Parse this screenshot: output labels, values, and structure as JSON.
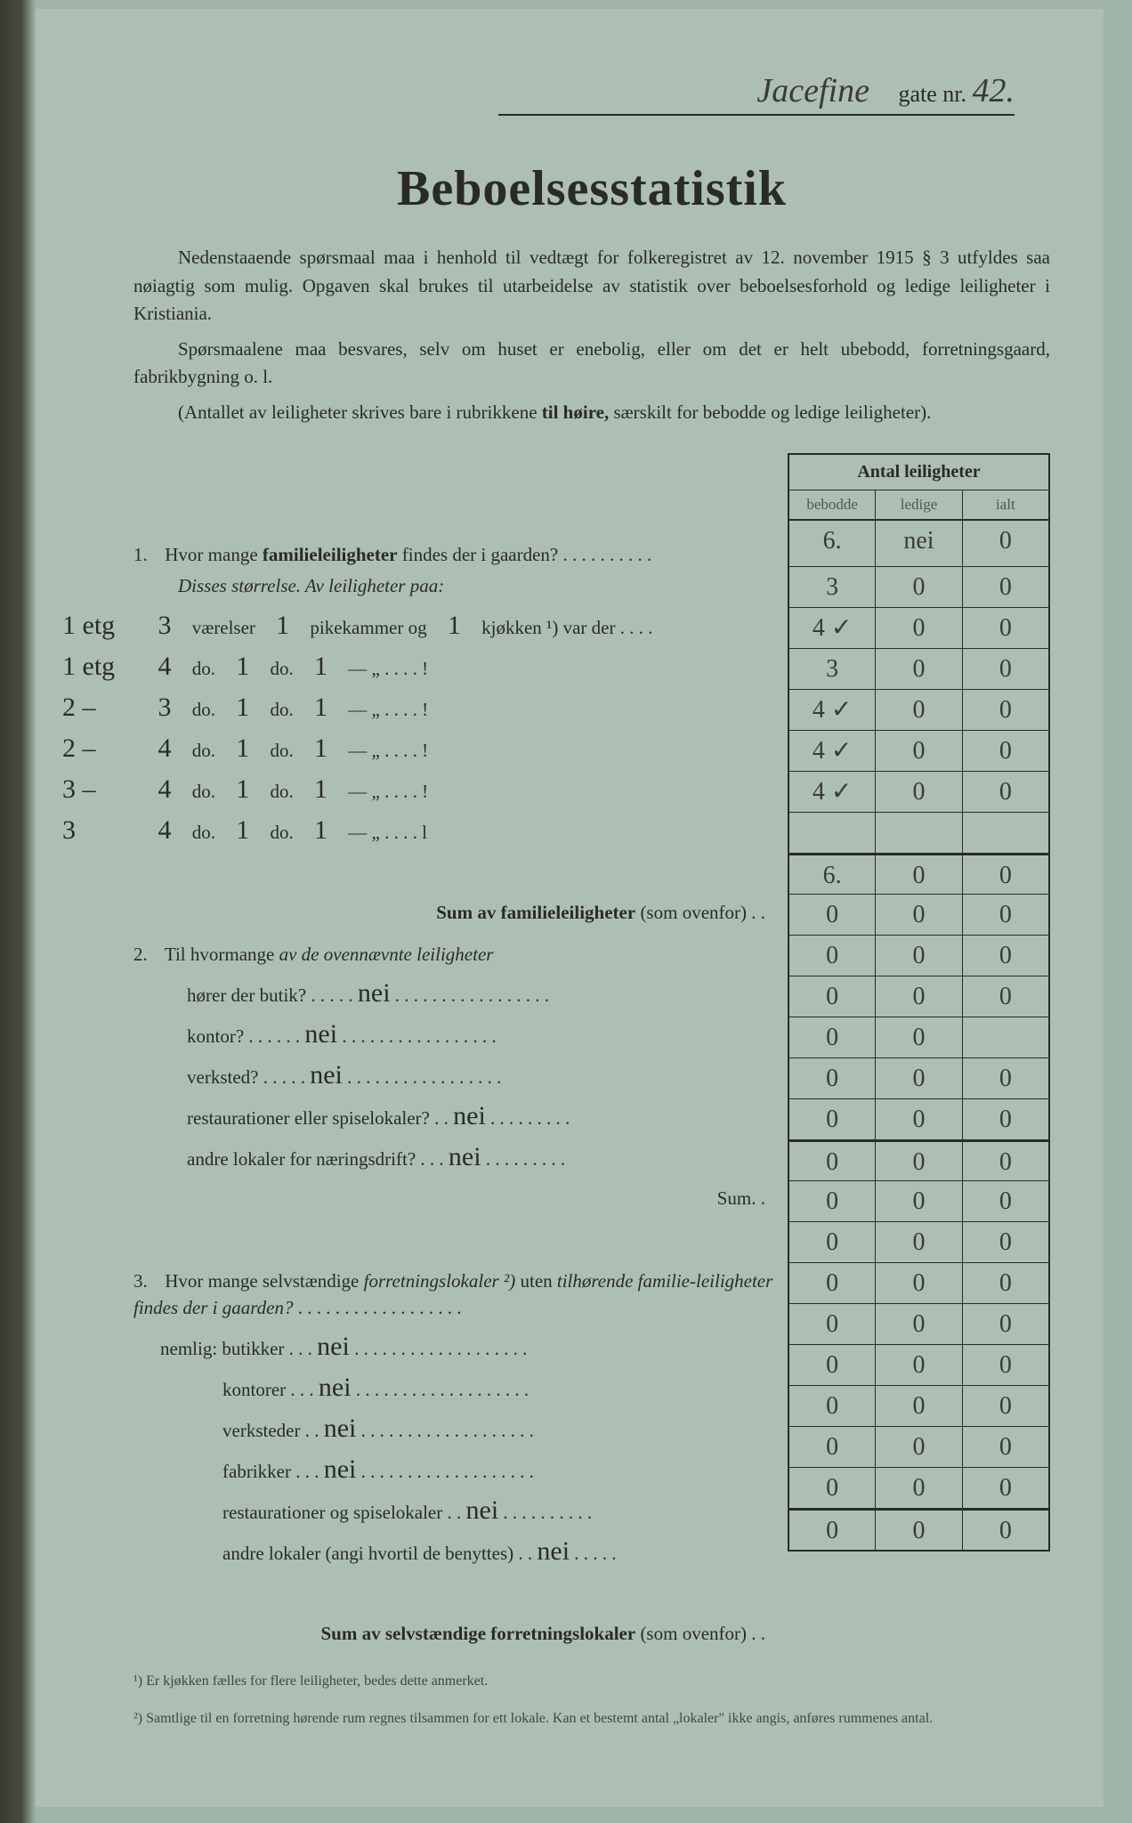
{
  "header": {
    "street_hw": "Jacefine",
    "gate_label": "gate nr.",
    "number_hw": "42."
  },
  "title": "Beboelsesstatistik",
  "intro": {
    "p1": "Nedenstaaende spørsmaal maa i henhold til vedtægt for folkeregistret av 12. november 1915 § 3 utfyldes saa nøiagtig som mulig.  Opgaven skal brukes til utarbeidelse av statistik over beboelsesforhold og ledige leiligheter i Kristiania.",
    "p2": "Spørsmaalene maa besvares, selv om huset er enebolig, eller om det er helt ubebodd, forretningsgaard, fabrikbygning o. l.",
    "p3_a": "(Antallet av leiligheter skrives bare i rubrikkene ",
    "p3_b": "til høire,",
    "p3_c": " særskilt for bebodde og ledige leiligheter)."
  },
  "table_header": {
    "title": "Antal leiligheter",
    "c1": "bebodde",
    "c2": "ledige",
    "c3": "ialt"
  },
  "q1": {
    "num": "1.",
    "text_a": "Hvor mange ",
    "text_b": "familieleiligheter",
    "text_c": " findes der i gaarden? . . . . . . . . . .",
    "row": {
      "c1": "6.",
      "c2": "nei",
      "c3": "0"
    },
    "disses": "Disses størrelse.  Av leiligheter paa:",
    "sizes": [
      {
        "pre": "1 etg",
        "v": "3",
        "w1": "værelser",
        "n1": "1",
        "w2": "pikekammer og",
        "n2": "1",
        "w3": "kjøkken ¹) var der . . . .",
        "row": {
          "c1": "3",
          "c2": "0",
          "c3": "0"
        }
      },
      {
        "pre": "1 etg",
        "v": "4",
        "w1": "do.",
        "n1": "1",
        "w2": "do.",
        "n2": "1",
        "w3": "—        „     . . . . !",
        "row": {
          "c1": "4 ✓",
          "c2": "0",
          "c3": "0"
        }
      },
      {
        "pre": "2  –",
        "v": "3",
        "w1": "do.",
        "n1": "1",
        "w2": "do.",
        "n2": "1",
        "w3": "—        „     . . . . !",
        "row": {
          "c1": "3",
          "c2": "0",
          "c3": "0"
        }
      },
      {
        "pre": "2  –",
        "v": "4",
        "w1": "do.",
        "n1": "1",
        "w2": "do.",
        "n2": "1",
        "w3": "—        „     . . . . !",
        "row": {
          "c1": "4 ✓",
          "c2": "0",
          "c3": "0"
        }
      },
      {
        "pre": "3  –",
        "v": "4",
        "w1": "do.",
        "n1": "1",
        "w2": "do.",
        "n2": "1",
        "w3": "—        „     . . . . !",
        "row": {
          "c1": "4 ✓",
          "c2": "0",
          "c3": "0"
        }
      },
      {
        "pre": "3",
        "v": "4",
        "w1": "do.",
        "n1": "1",
        "w2": "do.",
        "n2": "1",
        "w3": "—        „     . . . . l",
        "row": {
          "c1": "4 ✓",
          "c2": "0",
          "c3": "0"
        }
      }
    ],
    "blank_row": {
      "c1": "",
      "c2": "",
      "c3": ""
    },
    "sum_label": "Sum av familieleiligheter",
    "sum_suffix": " (som ovenfor) . .",
    "sum_row": {
      "c1": "6.",
      "c2": "0",
      "c3": "0"
    }
  },
  "q2": {
    "num": "2.",
    "text_a": "Til hvormange ",
    "text_b": "av de ovennævnte leiligheter",
    "items": [
      {
        "label": "hører der butik? . . . . .",
        "ans": "nei",
        "dots": ". . . . . . . . . . . . . . . . .",
        "row": {
          "c1": "0",
          "c2": "0",
          "c3": "0"
        }
      },
      {
        "label": "kontor? . . . . . .",
        "ans": "nei",
        "dots": ". . . . . . . . . . . . . . . . .",
        "row": {
          "c1": "0",
          "c2": "0",
          "c3": "0"
        }
      },
      {
        "label": "verksted? . . . . .",
        "ans": "nei",
        "dots": ". . . . . . . . . . . . . . . . .",
        "row": {
          "c1": "0",
          "c2": "0",
          "c3": "0"
        }
      },
      {
        "label": "restaurationer eller spiselokaler? . .",
        "ans": "nei",
        "dots": ". . . . . . . . .",
        "row": {
          "c1": "0",
          "c2": "0",
          "c3": ""
        }
      },
      {
        "label": "andre lokaler for næringsdrift? . . .",
        "ans": "nei",
        "dots": ". . . . . . . . .",
        "row": {
          "c1": "0",
          "c2": "0",
          "c3": "0"
        }
      }
    ],
    "sum_label": "Sum. .",
    "sum_row1": {
      "c1": "0",
      "c2": "0",
      "c3": "0"
    },
    "sum_row2": {
      "c1": "0",
      "c2": "0",
      "c3": "0"
    }
  },
  "q3": {
    "num": "3.",
    "text_a": "Hvor mange selvstændige ",
    "text_b": "forretningslokaler ²)",
    "text_c": " uten ",
    "text_d": "tilhørende familie-leiligheter findes der i gaarden?",
    "text_dots": " . . . . . . . . . . . . . . . . . .",
    "row0": {
      "c1": "0",
      "c2": "0",
      "c3": "0"
    },
    "nemlig": "nemlig:",
    "items": [
      {
        "label": "butikker  . . .",
        "ans": "nei",
        "dots": ". . . . . . . . . . . . . . . . . . .",
        "row": {
          "c1": "0",
          "c2": "0",
          "c3": "0"
        }
      },
      {
        "label": "kontorer  . . .",
        "ans": "nei",
        "dots": ". . . . . . . . . . . . . . . . . . .",
        "row": {
          "c1": "0",
          "c2": "0",
          "c3": "0"
        }
      },
      {
        "label": "verksteder  . .",
        "ans": "nei",
        "dots": ". . . . . . . . . . . . . . . . . . .",
        "row": {
          "c1": "0",
          "c2": "0",
          "c3": "0"
        }
      },
      {
        "label": "fabrikker  . . .",
        "ans": "nei",
        "dots": ". . . . . . . . . . . . . . . . . . .",
        "row": {
          "c1": "0",
          "c2": "0",
          "c3": "0"
        }
      },
      {
        "label": "restaurationer og spiselokaler . .",
        "ans": "nei",
        "dots": ". . . . . . . . . .",
        "row": {
          "c1": "0",
          "c2": "0",
          "c3": "0"
        }
      },
      {
        "label": "andre lokaler (angi hvortil de benyttes) . .",
        "ans": "nei",
        "dots": ". . . . .",
        "row": {
          "c1": "0",
          "c2": "0",
          "c3": "0"
        }
      }
    ],
    "blank_row": {
      "c1": "0",
      "c2": "0",
      "c3": "0"
    },
    "sum_label": "Sum av selvstændige forretningslokaler",
    "sum_suffix": " (som ovenfor) . .",
    "sum_row": {
      "c1": "0",
      "c2": "0",
      "c3": "0"
    }
  },
  "footnotes": {
    "f1": "¹)  Er kjøkken fælles for flere leiligheter, bedes dette anmerket.",
    "f2": "²)  Samtlige til en forretning hørende rum regnes tilsammen for ett lokale.  Kan et bestemt antal „lokaler\" ikke angis, anføres rummenes antal."
  },
  "colors": {
    "paper": "#adbfb2",
    "ink": "#2a2a2a",
    "hw": "#3a3a3a"
  }
}
